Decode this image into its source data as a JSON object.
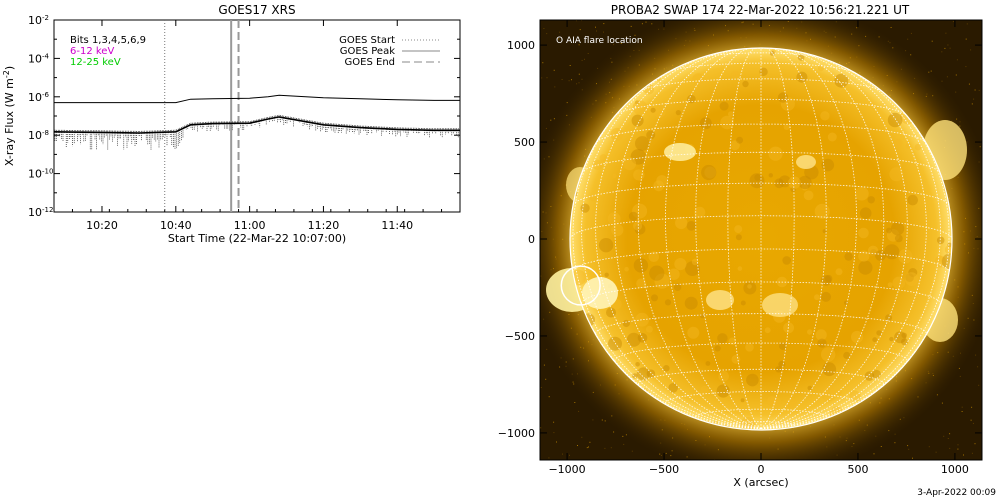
{
  "chart_data": [
    {
      "type": "line",
      "title": "GOES17 XRS",
      "xlabel": "Start Time (22-Mar-22 10:07:00)",
      "ylabel": "X-ray Flux (W m^-2)",
      "ylabel_base": "X-ray Flux (W m",
      "ylabel_exp": "-2",
      "ylabel_close": ")",
      "yscale": "log",
      "xlim": [
        "10:07",
        "11:57"
      ],
      "ylim": [
        1e-12,
        0.01
      ],
      "xticks": [
        "10:20",
        "10:40",
        "11:00",
        "11:20",
        "11:40"
      ],
      "yticks": [
        {
          "base": "10",
          "exp": "-2"
        },
        {
          "base": "10",
          "exp": "-4"
        },
        {
          "base": "10",
          "exp": "-6"
        },
        {
          "base": "10",
          "exp": "-8"
        },
        {
          "base": "10",
          "exp": "-10"
        },
        {
          "base": "10",
          "exp": "-12"
        }
      ],
      "annotations": [
        "Bits 1,3,4,5,6,9",
        "6-12 keV",
        "12-25 keV"
      ],
      "annotation_colors": [
        "#000000",
        "#cc00cc",
        "#00cc00"
      ],
      "legend": [
        {
          "label": "GOES Start",
          "style": "dotted"
        },
        {
          "label": "GOES Peak",
          "style": "solid"
        },
        {
          "label": "GOES End",
          "style": "dashed"
        }
      ],
      "legend_placement": "top-right",
      "markers": {
        "start": "10:37",
        "peak": "10:55",
        "end": "10:57"
      },
      "series": [
        {
          "x": [
            "10:07",
            "10:20",
            "10:30",
            "10:40",
            "10:44",
            "10:50",
            "11:00",
            "11:05",
            "11:08",
            "11:20",
            "11:30",
            "11:40",
            "11:50",
            "11:57"
          ],
          "values": [
            5e-07,
            5e-07,
            5e-07,
            5e-07,
            7.5e-07,
            8e-07,
            8.5e-07,
            1e-06,
            1.2e-06,
            9e-07,
            8e-07,
            7e-07,
            6.5e-07,
            6.5e-07
          ]
        },
        {
          "x": [
            "10:07",
            "10:20",
            "10:30",
            "10:40",
            "10:44",
            "10:50",
            "11:00",
            "11:05",
            "11:08",
            "11:20",
            "11:30",
            "11:40",
            "11:50",
            "11:57"
          ],
          "values": [
            1.5e-08,
            1.4e-08,
            1.3e-08,
            1.5e-08,
            3.5e-08,
            4e-08,
            4.2e-08,
            7e-08,
            9e-08,
            3.5e-08,
            2.5e-08,
            2e-08,
            1.8e-08,
            1.8e-08
          ]
        }
      ]
    },
    {
      "type": "image",
      "title": "PROBA2 SWAP 174 22-Mar-2022 10:56:21.221 UT",
      "xlabel": "X (arcsec)",
      "ylabel": "",
      "xlim": [
        -1200,
        1200
      ],
      "ylim": [
        -1100,
        1100
      ],
      "xticks": [
        -1000,
        -500,
        0,
        500,
        1000
      ],
      "yticks": [
        1000,
        500,
        0,
        -500,
        -1000
      ],
      "legend": [
        "O AIA flare location"
      ],
      "flare_location": {
        "x": -930,
        "y": -240,
        "radius": 100
      },
      "solar_radius_arcsec": 985
    }
  ],
  "footer": "3-Apr-2022 00:09"
}
